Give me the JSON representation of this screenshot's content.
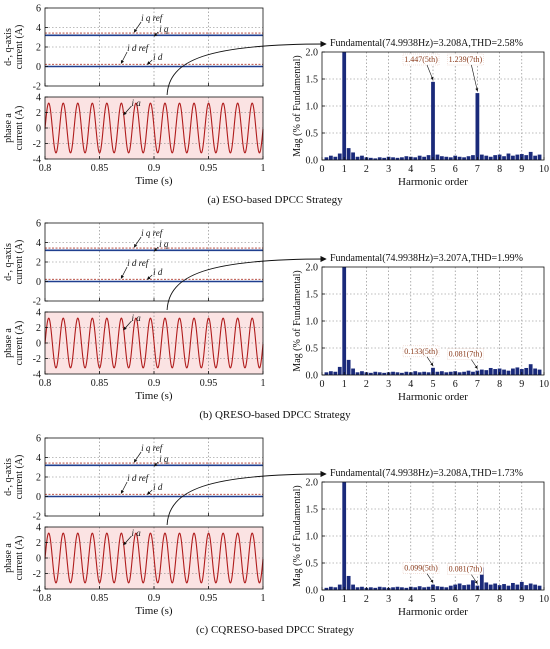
{
  "panels": [
    {
      "caption": "(a) ESO-based DPCC Strategy",
      "fundamental_text": "Fundamental(74.9938Hz)=3.208A,THD=2.58%",
      "annotations": [
        {
          "label": "1.447(5th)",
          "x": 5,
          "y": 1.447
        },
        {
          "label": "1.239(7th)",
          "x": 7,
          "y": 1.239
        }
      ]
    },
    {
      "caption": "(b) QRESO-based DPCC Strategy",
      "fundamental_text": "Fundamental(74.9938Hz)=3.207A,THD=1.99%",
      "annotations": [
        {
          "label": "0.133(5th)",
          "x": 5,
          "y": 0.133
        },
        {
          "label": "0.081(7th)",
          "x": 7,
          "y": 0.081
        }
      ]
    },
    {
      "caption": "(c) CQRESO-based DPCC Strategy",
      "fundamental_text": "Fundamental(74.9938Hz)=3.208A,THD=1.73%",
      "annotations": [
        {
          "label": "0.099(5th)",
          "x": 5,
          "y": 0.099
        },
        {
          "label": "0.081(7th)",
          "x": 7,
          "y": 0.081
        }
      ]
    }
  ],
  "labels": {
    "dq_ylabel_line1": "d-, q-axis",
    "dq_ylabel_line2": "current (A)",
    "phase_ylabel_line1": "phase a",
    "phase_ylabel_line2": "current (A)",
    "time_xlabel": "Time (s)",
    "fft_ylabel": "Mag (% of Fundamental)",
    "fft_xlabel": "Harmonic order",
    "sym_iq_ref": "i q ref",
    "sym_iq": "i q",
    "sym_id_ref": "i d ref",
    "sym_id": "i d",
    "sym_ia": "i a"
  },
  "chart_data": [
    {
      "type": "line",
      "title": "",
      "xlabel": "",
      "ylabel": "d-, q-axis current (A)",
      "xlim": [
        0.8,
        1.0
      ],
      "ylim": [
        -2,
        6
      ],
      "x_ticks": [
        0.8,
        0.85,
        0.9,
        0.95,
        1.0
      ],
      "y_ticks": [
        -2,
        0,
        2,
        4,
        6
      ],
      "series": [
        {
          "name": "iq_ref",
          "value": 3.2,
          "color": "#b03a2e",
          "style": "dashed"
        },
        {
          "name": "iq",
          "value": 3.2,
          "color": "#1f3f8f"
        },
        {
          "name": "id_ref",
          "value": 0,
          "color": "#b03a2e",
          "style": "dashed"
        },
        {
          "name": "id",
          "value": 0,
          "color": "#1f3f8f"
        }
      ],
      "grid": true
    },
    {
      "type": "line",
      "title": "",
      "xlabel": "Time (s)",
      "ylabel": "phase a current (A)",
      "xlim": [
        0.8,
        1.0
      ],
      "ylim": [
        -4,
        4
      ],
      "x_ticks": [
        0.8,
        0.85,
        0.9,
        0.95,
        1.0
      ],
      "y_ticks": [
        -4,
        -2,
        0,
        2,
        4
      ],
      "series": [
        {
          "name": "ia",
          "amplitude": 3.208,
          "frequency_hz": 74.9938,
          "color": "#b01c1c"
        }
      ],
      "grid": true
    },
    {
      "type": "bar",
      "title": "Fundamental(74.9938Hz)=3.208A,THD=2.58%",
      "xlabel": "Harmonic order",
      "ylabel": "Mag (% of Fundamental)",
      "xlim": [
        0,
        10
      ],
      "ylim": [
        0,
        2.0
      ],
      "x_ticks": [
        0,
        1,
        2,
        3,
        4,
        5,
        6,
        7,
        8,
        9,
        10
      ],
      "y_ticks": [
        0,
        0.5,
        1.0,
        1.5,
        2.0
      ],
      "x": [
        0.2,
        0.4,
        0.6,
        0.8,
        1.0,
        1.2,
        1.4,
        1.6,
        1.8,
        2.0,
        2.2,
        2.4,
        2.6,
        2.8,
        3.0,
        3.2,
        3.4,
        3.6,
        3.8,
        4.0,
        4.2,
        4.4,
        4.6,
        4.8,
        5.0,
        5.2,
        5.4,
        5.6,
        5.8,
        6.0,
        6.2,
        6.4,
        6.6,
        6.8,
        7.0,
        7.2,
        7.4,
        7.6,
        7.8,
        8.0,
        8.2,
        8.4,
        8.6,
        8.8,
        9.0,
        9.2,
        9.4,
        9.6,
        9.8
      ],
      "values": [
        0.05,
        0.08,
        0.06,
        0.12,
        2.0,
        0.22,
        0.14,
        0.06,
        0.08,
        0.05,
        0.04,
        0.03,
        0.05,
        0.04,
        0.06,
        0.05,
        0.04,
        0.05,
        0.07,
        0.06,
        0.05,
        0.08,
        0.06,
        0.09,
        1.447,
        0.1,
        0.07,
        0.06,
        0.05,
        0.08,
        0.06,
        0.05,
        0.07,
        0.09,
        1.239,
        0.1,
        0.08,
        0.06,
        0.09,
        0.1,
        0.07,
        0.12,
        0.08,
        0.1,
        0.11,
        0.09,
        0.15,
        0.08,
        0.1
      ],
      "color": "#1a2a7a",
      "grid": true
    },
    {
      "type": "line",
      "title": "",
      "xlabel": "",
      "ylabel": "d-, q-axis current (A)",
      "xlim": [
        0.8,
        1.0
      ],
      "ylim": [
        -2,
        6
      ],
      "x_ticks": [
        0.8,
        0.85,
        0.9,
        0.95,
        1.0
      ],
      "y_ticks": [
        -2,
        0,
        2,
        4,
        6
      ],
      "series": [
        {
          "name": "iq_ref",
          "value": 3.2,
          "color": "#b03a2e",
          "style": "dashed"
        },
        {
          "name": "iq",
          "value": 3.2,
          "color": "#1f3f8f"
        },
        {
          "name": "id_ref",
          "value": 0,
          "color": "#b03a2e",
          "style": "dashed"
        },
        {
          "name": "id",
          "value": 0,
          "color": "#1f3f8f"
        }
      ],
      "grid": true
    },
    {
      "type": "line",
      "title": "",
      "xlabel": "Time (s)",
      "ylabel": "phase a current (A)",
      "xlim": [
        0.8,
        1.0
      ],
      "ylim": [
        -4,
        4
      ],
      "x_ticks": [
        0.8,
        0.85,
        0.9,
        0.95,
        1.0
      ],
      "y_ticks": [
        -4,
        -2,
        0,
        2,
        4
      ],
      "series": [
        {
          "name": "ia",
          "amplitude": 3.207,
          "frequency_hz": 74.9938,
          "color": "#b01c1c"
        }
      ],
      "grid": true
    },
    {
      "type": "bar",
      "title": "Fundamental(74.9938Hz)=3.207A,THD=1.99%",
      "xlabel": "Harmonic order",
      "ylabel": "Mag (% of Fundamental)",
      "xlim": [
        0,
        10
      ],
      "ylim": [
        0,
        2.0
      ],
      "x_ticks": [
        0,
        1,
        2,
        3,
        4,
        5,
        6,
        7,
        8,
        9,
        10
      ],
      "y_ticks": [
        0,
        0.5,
        1.0,
        1.5,
        2.0
      ],
      "x": [
        0.2,
        0.4,
        0.6,
        0.8,
        1.0,
        1.2,
        1.4,
        1.6,
        1.8,
        2.0,
        2.2,
        2.4,
        2.6,
        2.8,
        3.0,
        3.2,
        3.4,
        3.6,
        3.8,
        4.0,
        4.2,
        4.4,
        4.6,
        4.8,
        5.0,
        5.2,
        5.4,
        5.6,
        5.8,
        6.0,
        6.2,
        6.4,
        6.6,
        6.8,
        7.0,
        7.2,
        7.4,
        7.6,
        7.8,
        8.0,
        8.2,
        8.4,
        8.6,
        8.8,
        9.0,
        9.2,
        9.4,
        9.6,
        9.8
      ],
      "values": [
        0.05,
        0.07,
        0.06,
        0.15,
        2.0,
        0.28,
        0.12,
        0.05,
        0.07,
        0.05,
        0.04,
        0.06,
        0.05,
        0.04,
        0.05,
        0.06,
        0.05,
        0.04,
        0.06,
        0.05,
        0.07,
        0.05,
        0.06,
        0.05,
        0.133,
        0.06,
        0.07,
        0.05,
        0.06,
        0.07,
        0.05,
        0.06,
        0.08,
        0.06,
        0.081,
        0.1,
        0.09,
        0.13,
        0.11,
        0.12,
        0.1,
        0.08,
        0.12,
        0.14,
        0.11,
        0.13,
        0.2,
        0.12,
        0.1
      ],
      "color": "#1a2a7a",
      "grid": true
    },
    {
      "type": "line",
      "title": "",
      "xlabel": "",
      "ylabel": "d-, q-axis current (A)",
      "xlim": [
        0.8,
        1.0
      ],
      "ylim": [
        -2,
        6
      ],
      "x_ticks": [
        0.8,
        0.85,
        0.9,
        0.95,
        1.0
      ],
      "y_ticks": [
        -2,
        0,
        2,
        4,
        6
      ],
      "series": [
        {
          "name": "iq_ref",
          "value": 3.2,
          "color": "#b03a2e",
          "style": "dashed"
        },
        {
          "name": "iq",
          "value": 3.2,
          "color": "#1f3f8f"
        },
        {
          "name": "id_ref",
          "value": 0,
          "color": "#b03a2e",
          "style": "dashed"
        },
        {
          "name": "id",
          "value": 0,
          "color": "#1f3f8f"
        }
      ],
      "grid": true
    },
    {
      "type": "line",
      "title": "",
      "xlabel": "Time (s)",
      "ylabel": "phase a current (A)",
      "xlim": [
        0.8,
        1.0
      ],
      "ylim": [
        -4,
        4
      ],
      "x_ticks": [
        0.8,
        0.85,
        0.9,
        0.95,
        1.0
      ],
      "y_ticks": [
        -4,
        -2,
        0,
        2,
        4
      ],
      "series": [
        {
          "name": "ia",
          "amplitude": 3.208,
          "frequency_hz": 74.9938,
          "color": "#b01c1c"
        }
      ],
      "grid": true
    },
    {
      "type": "bar",
      "title": "Fundamental(74.9938Hz)=3.208A,THD=1.73%",
      "xlabel": "Harmonic order",
      "ylabel": "Mag (% of Fundamental)",
      "xlim": [
        0,
        10
      ],
      "ylim": [
        0,
        2.0
      ],
      "x_ticks": [
        0,
        1,
        2,
        3,
        4,
        5,
        6,
        7,
        8,
        9,
        10
      ],
      "y_ticks": [
        0,
        0.5,
        1.0,
        1.5,
        2.0
      ],
      "x": [
        0.2,
        0.4,
        0.6,
        0.8,
        1.0,
        1.2,
        1.4,
        1.6,
        1.8,
        2.0,
        2.2,
        2.4,
        2.6,
        2.8,
        3.0,
        3.2,
        3.4,
        3.6,
        3.8,
        4.0,
        4.2,
        4.4,
        4.6,
        4.8,
        5.0,
        5.2,
        5.4,
        5.6,
        5.8,
        6.0,
        6.2,
        6.4,
        6.6,
        6.8,
        7.0,
        7.2,
        7.4,
        7.6,
        7.8,
        8.0,
        8.2,
        8.4,
        8.6,
        8.8,
        9.0,
        9.2,
        9.4,
        9.6,
        9.8
      ],
      "values": [
        0.04,
        0.06,
        0.05,
        0.1,
        2.0,
        0.26,
        0.1,
        0.05,
        0.06,
        0.04,
        0.05,
        0.04,
        0.06,
        0.05,
        0.04,
        0.05,
        0.06,
        0.05,
        0.04,
        0.06,
        0.05,
        0.07,
        0.05,
        0.06,
        0.099,
        0.07,
        0.06,
        0.05,
        0.08,
        0.1,
        0.12,
        0.09,
        0.1,
        0.18,
        0.081,
        0.42,
        0.14,
        0.1,
        0.12,
        0.09,
        0.11,
        0.08,
        0.13,
        0.1,
        0.15,
        0.09,
        0.12,
        0.1,
        0.08
      ],
      "color": "#1a2a7a",
      "grid": true
    }
  ]
}
